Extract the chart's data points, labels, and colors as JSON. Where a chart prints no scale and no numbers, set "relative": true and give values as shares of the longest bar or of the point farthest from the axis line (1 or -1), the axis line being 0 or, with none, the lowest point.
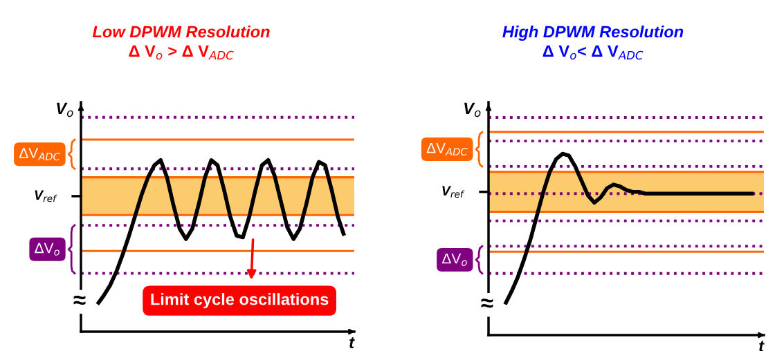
{
  "chart_data": [
    {
      "type": "line",
      "title": "Low DPWM Resolution",
      "subtitle": "Δ V$_{o}$ > Δ V$_{ADC}$",
      "ylabel": "V$_{o}$",
      "xlabel": "t",
      "relative": true,
      "grid": false,
      "legend": false,
      "categories": [
        null,
        null,
        null,
        null,
        null,
        null,
        null,
        null,
        null,
        null,
        null,
        null,
        null,
        null,
        null,
        null,
        null,
        null,
        null,
        null,
        null,
        null,
        null,
        null,
        null,
        null,
        null,
        null,
        null,
        null,
        null,
        null,
        null,
        null,
        null,
        null,
        null,
        null,
        null,
        null
      ],
      "series": [
        {
          "color": "#000000",
          "values": [
            0.16,
            0.21,
            0.27,
            0.35,
            0.45,
            0.56,
            0.68,
            0.8,
            0.9,
            0.97,
            1.0,
            0.9,
            0.74,
            0.6,
            0.54,
            0.6,
            0.74,
            0.9,
            1.0,
            0.97,
            0.83,
            0.67,
            0.56,
            0.55,
            0.67,
            0.83,
            0.97,
            1.0,
            0.91,
            0.76,
            0.61,
            0.54,
            0.6,
            0.74,
            0.9,
            0.99,
            0.97,
            0.83,
            0.67,
            0.56
          ]
        }
      ],
      "ref_lines": [
        {
          "axis": "y",
          "value": 1.25,
          "color": "#800080",
          "line_style": "dotted"
        },
        {
          "axis": "y",
          "value": 0.95,
          "color": "#800080",
          "line_style": "dotted"
        },
        {
          "axis": "y",
          "value": 0.62,
          "color": "#800080",
          "line_style": "dotted"
        },
        {
          "axis": "y",
          "value": 0.34,
          "color": "#800080",
          "line_style": "dotted"
        },
        {
          "axis": "y",
          "value": 1.12,
          "color": "#ff6600",
          "line_style": "solid"
        },
        {
          "axis": "y",
          "value": 0.9,
          "color": "#ff6600",
          "line_style": "solid"
        },
        {
          "axis": "y",
          "value": 0.68,
          "color": "#ff6600",
          "line_style": "solid"
        },
        {
          "axis": "y",
          "value": 0.47,
          "color": "#ff6600",
          "line_style": "solid"
        }
      ],
      "bands": [
        {
          "axis": "y",
          "from": 0.68,
          "to": 0.9,
          "label": "V$_{ref}$",
          "color": "#fccb6e"
        }
      ],
      "annotations": [
        "ΔV$_{ADC}$",
        "ΔV$_{o}$",
        "≈",
        "Limit cycle oscillations"
      ]
    },
    {
      "type": "line",
      "title": "High DPWM Resolution",
      "subtitle": "Δ V$_{o}$< Δ V$_{ADC}$",
      "ylabel": "V$_{o}$",
      "xlabel": "t",
      "relative": true,
      "grid": false,
      "legend": false,
      "categories": [
        null,
        null,
        null,
        null,
        null,
        null,
        null,
        null,
        null,
        null,
        null,
        null,
        null,
        null,
        null,
        null,
        null,
        null,
        null,
        null,
        null,
        null,
        null,
        null,
        null,
        null,
        null,
        null,
        null,
        null,
        null,
        null,
        null,
        null,
        null,
        null,
        null,
        null,
        null,
        null
      ],
      "series": [
        {
          "color": "#000000",
          "values": [
            0.17,
            0.24,
            0.32,
            0.42,
            0.53,
            0.66,
            0.79,
            0.9,
            0.97,
            1.0,
            0.99,
            0.93,
            0.85,
            0.77,
            0.73,
            0.76,
            0.81,
            0.83,
            0.82,
            0.8,
            0.79,
            0.79,
            0.78,
            0.78,
            0.78,
            0.78,
            0.78,
            0.78,
            0.78,
            0.78,
            0.78,
            0.78,
            0.78,
            0.78,
            0.78,
            0.78,
            0.78,
            0.78,
            0.78,
            0.78
          ]
        }
      ],
      "ref_lines": [
        {
          "axis": "y",
          "value": 1.2,
          "color": "#800080",
          "line_style": "dotted"
        },
        {
          "axis": "y",
          "value": 1.07,
          "color": "#800080",
          "line_style": "dotted"
        },
        {
          "axis": "y",
          "value": 0.93,
          "color": "#800080",
          "line_style": "dotted"
        },
        {
          "axis": "y",
          "value": 0.78,
          "color": "#800080",
          "line_style": "dotted"
        },
        {
          "axis": "y",
          "value": 0.63,
          "color": "#800080",
          "line_style": "dotted"
        },
        {
          "axis": "y",
          "value": 0.49,
          "color": "#800080",
          "line_style": "dotted"
        },
        {
          "axis": "y",
          "value": 0.34,
          "color": "#800080",
          "line_style": "dotted"
        },
        {
          "axis": "y",
          "value": 1.12,
          "color": "#ff6600",
          "line_style": "solid"
        },
        {
          "axis": "y",
          "value": 0.9,
          "color": "#ff6600",
          "line_style": "solid"
        },
        {
          "axis": "y",
          "value": 0.68,
          "color": "#ff6600",
          "line_style": "solid"
        },
        {
          "axis": "y",
          "value": 0.46,
          "color": "#ff6600",
          "line_style": "solid"
        }
      ],
      "bands": [
        {
          "axis": "y",
          "from": 0.68,
          "to": 0.9,
          "label": "V$_{ref}$",
          "color": "#fccb6e"
        }
      ],
      "annotations": [
        "ΔV$_{ADC}$",
        "ΔV$_{o}$",
        "≈"
      ]
    }
  ]
}
